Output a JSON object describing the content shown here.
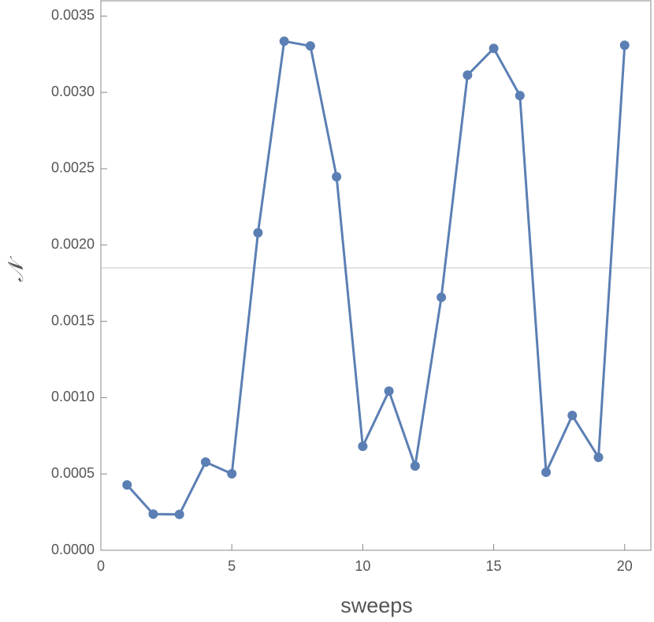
{
  "chart_data": {
    "type": "line",
    "x_label": "sweeps",
    "y_label": "𝒩",
    "x": [
      1,
      2,
      3,
      4,
      5,
      6,
      7,
      8,
      9,
      10,
      11,
      12,
      13,
      14,
      15,
      16,
      17,
      18,
      19,
      20
    ],
    "series": [
      {
        "color": "#5b7fb4",
        "values": [
          0.000428,
          0.000237,
          0.000235,
          0.000578,
          0.000501,
          0.00208,
          0.003335,
          0.003304,
          0.002447,
          0.000681,
          0.001043,
          0.000552,
          0.001657,
          0.003113,
          0.003288,
          0.002979,
          0.000511,
          0.000883,
          0.000609,
          0.003309
        ]
      }
    ],
    "reference_line": 0.00185,
    "xlim": [
      0,
      21
    ],
    "ylim": [
      0,
      0.0036
    ],
    "xticks": [
      0,
      5,
      10,
      15,
      20
    ],
    "yticks": [
      {
        "value": 0,
        "label": "0.0000"
      },
      {
        "value": 0.0005,
        "label": "0.0005"
      },
      {
        "value": 0.001,
        "label": "0.0010"
      },
      {
        "value": 0.0015,
        "label": "0.0015"
      },
      {
        "value": 0.002,
        "label": "0.0020"
      },
      {
        "value": 0.0025,
        "label": "0.0025"
      },
      {
        "value": 0.003,
        "label": "0.0030"
      },
      {
        "value": 0.0035,
        "label": "0.0035"
      }
    ]
  }
}
